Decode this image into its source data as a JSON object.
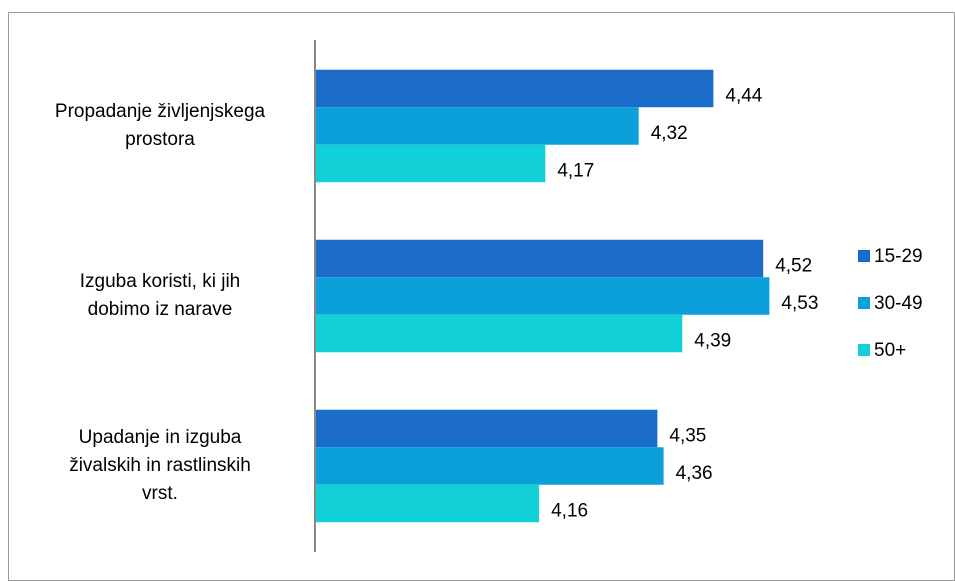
{
  "chart_data": {
    "type": "hbar",
    "categories": [
      [
        "Propadanje življenjskega",
        "prostora"
      ],
      [
        "Izguba koristi, ki jih",
        "dobimo iz narave"
      ],
      [
        "Upadanje in izguba",
        "živalskih in rastlinskih",
        "vrst."
      ]
    ],
    "series": [
      {
        "name": "15-29",
        "color": "#1b6cc8",
        "values": [
          4.44,
          4.52,
          4.35
        ],
        "value_labels": [
          "4,44",
          "4,52",
          "4,35"
        ]
      },
      {
        "name": "30-49",
        "color": "#0ba0da",
        "values": [
          4.32,
          4.53,
          4.36
        ],
        "value_labels": [
          "4,32",
          "4,53",
          "4,36"
        ]
      },
      {
        "name": "50+",
        "color": "#12d0d8",
        "values": [
          4.17,
          4.39,
          4.16
        ],
        "value_labels": [
          "4,17",
          "4,39",
          "4,16"
        ]
      }
    ],
    "xlim": [
      3.8,
      4.6
    ]
  }
}
